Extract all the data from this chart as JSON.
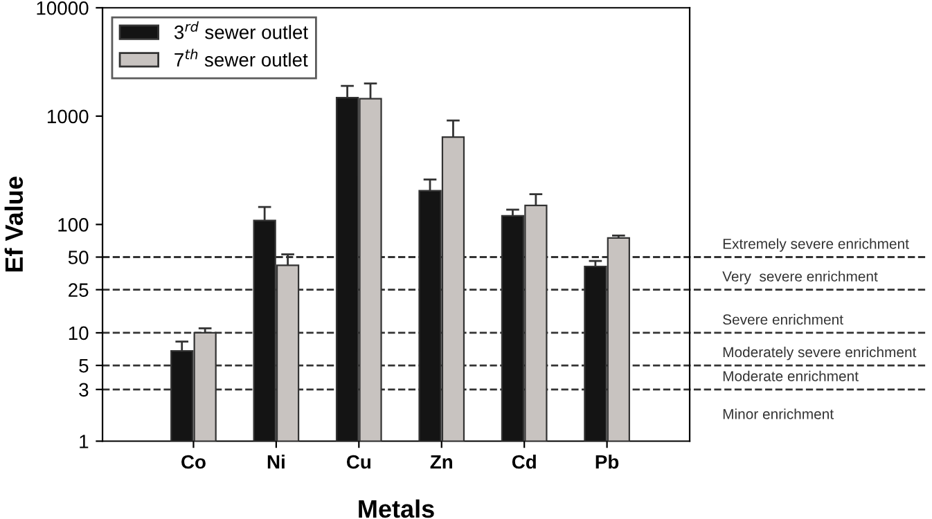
{
  "chart_data": {
    "type": "bar",
    "xlabel": "Metals",
    "ylabel": "Ef Value",
    "categories": [
      "Co",
      "Ni",
      "Cu",
      "Zn",
      "Cd",
      "Pb"
    ],
    "series": [
      {
        "name": "3$^{rd}$ sewer outlet",
        "color": "#141414",
        "values": [
          6.8,
          109,
          1480,
          205,
          120,
          41
        ],
        "errors": [
          [
            6.8,
            8.3
          ],
          [
            109,
            145
          ],
          [
            1480,
            1900
          ],
          [
            205,
            260
          ],
          [
            120,
            137
          ],
          [
            41,
            46
          ]
        ]
      },
      {
        "name": "7$^{th}$ sewer outlet",
        "color": "#c8c3c0",
        "values": [
          10,
          42,
          1450,
          640,
          150,
          75
        ],
        "errors": [
          [
            10,
            11
          ],
          [
            42,
            53
          ],
          [
            1450,
            2000
          ],
          [
            640,
            910
          ],
          [
            150,
            190
          ],
          [
            75,
            79
          ]
        ]
      }
    ],
    "log": "y",
    "ylim": [
      1,
      10000
    ],
    "yticks": [
      1,
      3,
      5,
      10,
      25,
      50,
      100,
      1000,
      10000
    ],
    "ref_lines": [
      {
        "axis": "y",
        "value": 50,
        "label": "Extremely severe enrichment",
        "line_style": "dashed",
        "color": "#333333"
      },
      {
        "axis": "y",
        "value": 25,
        "label": "Very  severe enrichment",
        "line_style": "dashed",
        "color": "#333333"
      },
      {
        "axis": "y",
        "value": 10,
        "label": "Severe enrichment",
        "line_style": "dashed",
        "color": "#333333"
      },
      {
        "axis": "y",
        "value": 5,
        "label": "Moderately severe enrichment",
        "line_style": "dashed",
        "color": "#333333"
      },
      {
        "axis": "y",
        "value": 3,
        "label": "Moderate enrichment",
        "line_style": "dashed",
        "color": "#333333"
      }
    ],
    "annotations": [
      "Minor enrichment"
    ],
    "legend": "top left",
    "grid": false
  }
}
